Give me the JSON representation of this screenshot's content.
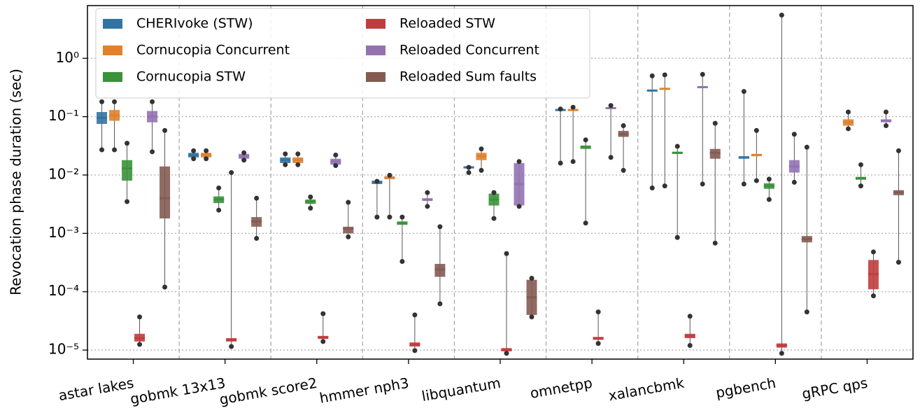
{
  "chart_data": {
    "type": "boxen",
    "ylabel": "Revocation phase duration (sec)",
    "yscale": "log",
    "ylim": [
      7e-06,
      8
    ],
    "yticks": [
      {
        "value": 1e-05,
        "label": "10⁻⁵"
      },
      {
        "value": 0.0001,
        "label": "10⁻⁴"
      },
      {
        "value": 0.001,
        "label": "10⁻³"
      },
      {
        "value": 0.01,
        "label": "10⁻²"
      },
      {
        "value": 0.1,
        "label": "10⁻¹"
      },
      {
        "value": 1,
        "label": "10⁰"
      }
    ],
    "grid": true,
    "legend_loc": "upper left",
    "categories": [
      "astar lakes",
      "gobmk 13x13",
      "gobmk score2",
      "hmmer nph3",
      "libquantum",
      "omnetpp",
      "xalancbmk",
      "pgbench",
      "gRPC qps"
    ],
    "series": [
      {
        "name": "CHERIvoke (STW)",
        "color": "#3274a1",
        "median": [
          0.095,
          0.022,
          0.018,
          0.0075,
          0.0135,
          0.13,
          0.28,
          0.02,
          null
        ],
        "q_low": [
          0.075,
          0.02,
          0.016,
          0.007,
          0.013,
          0.128,
          0.275,
          0.019,
          null
        ],
        "q_high": [
          0.12,
          0.024,
          0.02,
          0.008,
          0.014,
          0.133,
          0.285,
          0.021,
          null
        ],
        "min": [
          0.027,
          0.019,
          0.015,
          0.0019,
          0.011,
          0.016,
          0.006,
          0.007,
          null
        ],
        "max": [
          0.18,
          0.026,
          0.023,
          0.0078,
          0.0135,
          0.135,
          0.5,
          0.27,
          null
        ]
      },
      {
        "name": "Cornucopia Concurrent",
        "color": "#e1812c",
        "median": [
          0.105,
          0.022,
          0.018,
          0.009,
          0.021,
          0.13,
          0.3,
          0.022,
          0.08
        ],
        "q_low": [
          0.085,
          0.02,
          0.016,
          0.0085,
          0.018,
          0.128,
          0.29,
          0.021,
          0.07
        ],
        "q_high": [
          0.13,
          0.024,
          0.02,
          0.0095,
          0.024,
          0.133,
          0.31,
          0.023,
          0.09
        ],
        "min": [
          0.027,
          0.019,
          0.015,
          0.0019,
          0.012,
          0.017,
          0.0065,
          0.008,
          0.062
        ],
        "max": [
          0.18,
          0.026,
          0.023,
          0.0099,
          0.028,
          0.145,
          0.52,
          0.058,
          0.12
        ]
      },
      {
        "name": "Cornucopia STW",
        "color": "#3a923a",
        "median": [
          0.013,
          0.0038,
          0.0035,
          0.0015,
          0.0038,
          0.03,
          0.024,
          0.0065,
          0.0088
        ],
        "q_low": [
          0.008,
          0.0033,
          0.0032,
          0.0014,
          0.003,
          0.028,
          0.023,
          0.0058,
          0.0083
        ],
        "q_high": [
          0.018,
          0.0043,
          0.0038,
          0.0016,
          0.0048,
          0.032,
          0.025,
          0.0072,
          0.0093
        ],
        "min": [
          0.0035,
          0.0025,
          0.0027,
          0.00033,
          0.0018,
          0.0015,
          0.00085,
          0.0038,
          0.0065
        ],
        "max": [
          0.035,
          0.006,
          0.0042,
          0.0019,
          0.005,
          0.04,
          0.031,
          0.0085,
          0.015
        ]
      },
      {
        "name": "Reloaded STW",
        "color": "#c03d3e",
        "median": [
          1.6e-05,
          1.5e-05,
          1.65e-05,
          1.25e-05,
          1.02e-05,
          1.58e-05,
          1.75e-05,
          1.2e-05,
          0.0002
        ],
        "q_low": [
          1.4e-05,
          1.4e-05,
          1.55e-05,
          1.15e-05,
          9.5e-06,
          1.5e-05,
          1.6e-05,
          1.1e-05,
          0.00011
        ],
        "q_high": [
          1.9e-05,
          1.6e-05,
          1.75e-05,
          1.35e-05,
          1.08e-05,
          1.68e-05,
          1.9e-05,
          1.3e-05,
          0.00035
        ],
        "min": [
          1.25e-05,
          1.15e-05,
          1.4e-05,
          9.8e-06,
          8.8e-06,
          1.3e-05,
          1.2e-05,
          8.8e-06,
          8.5e-05
        ],
        "max": [
          3.7e-05,
          0.011,
          4.2e-05,
          4e-05,
          0.00045,
          4.5e-05,
          3.8e-05,
          5.5,
          0.00048
        ]
      },
      {
        "name": "Reloaded Concurrent",
        "color": "#9372b2",
        "median": [
          0.1,
          0.021,
          0.017,
          0.0038,
          0.007,
          0.14,
          0.32,
          0.014,
          0.085
        ],
        "q_low": [
          0.08,
          0.019,
          0.015,
          0.0036,
          0.003,
          0.138,
          0.31,
          0.011,
          0.08
        ],
        "q_high": [
          0.125,
          0.023,
          0.019,
          0.004,
          0.016,
          0.142,
          0.33,
          0.018,
          0.09
        ],
        "min": [
          0.025,
          0.018,
          0.0145,
          0.0029,
          0.0029,
          0.02,
          0.007,
          0.0075,
          0.07
        ],
        "max": [
          0.18,
          0.024,
          0.022,
          0.005,
          0.017,
          0.155,
          0.53,
          0.05,
          0.12
        ]
      },
      {
        "name": "Reloaded Sum faults",
        "color": "#845b53",
        "median": [
          0.004,
          0.0016,
          0.0012,
          0.00024,
          8e-05,
          0.05,
          0.024,
          0.0008,
          0.005
        ],
        "q_low": [
          0.0018,
          0.0013,
          0.001,
          0.00018,
          4e-05,
          0.045,
          0.019,
          0.0007,
          0.0045
        ],
        "q_high": [
          0.014,
          0.0019,
          0.0013,
          0.0003,
          0.00016,
          0.057,
          0.028,
          0.0009,
          0.0055
        ],
        "min": [
          0.00012,
          0.00082,
          0.00087,
          6.2e-05,
          3.7e-05,
          0.012,
          0.00068,
          4.5e-05,
          0.00032
        ],
        "max": [
          0.058,
          0.004,
          0.0034,
          0.0013,
          0.00017,
          0.07,
          0.077,
          0.03,
          0.026
        ]
      }
    ]
  }
}
